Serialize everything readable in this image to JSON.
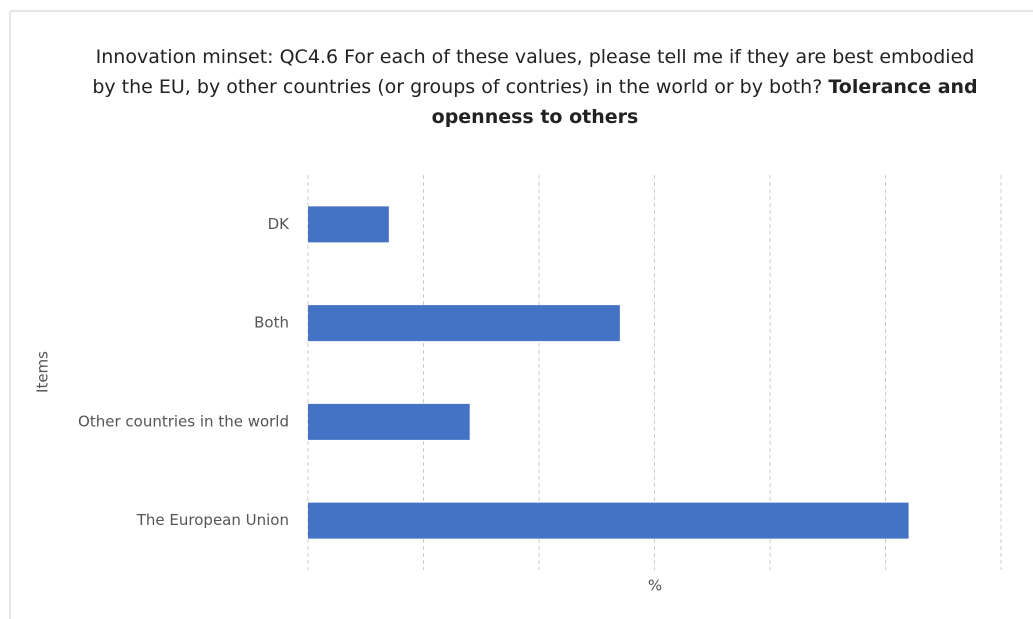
{
  "chart_data": {
    "type": "barh",
    "title_parts": [
      "Innovation minset: QC4.6 For each of these values, please tell me if they are best embodied by the EU, by other countries (or groups of contries) in the world or by both?",
      "Tolerance and openness to others"
    ],
    "categories": [
      "DK",
      "Both",
      "Other countries in the world",
      "The European Union"
    ],
    "values": [
      7,
      27,
      14,
      52
    ],
    "color": "#4472c4",
    "xlabel": "%",
    "ylabel": "Items",
    "xlim": [
      0,
      60
    ],
    "xticks": [
      0,
      10,
      20,
      30,
      40,
      50,
      60
    ],
    "grid": true
  }
}
